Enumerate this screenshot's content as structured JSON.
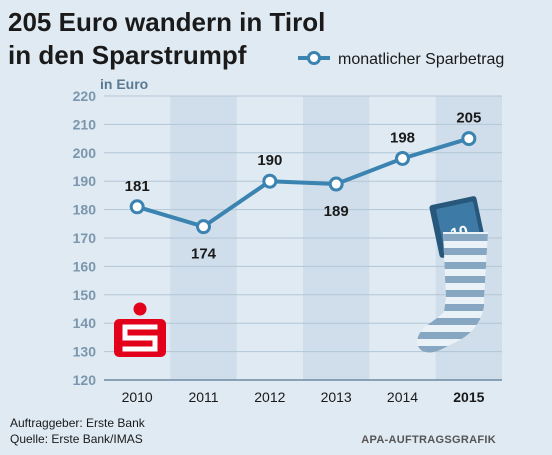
{
  "title_lines": [
    "205 Euro wandern in Tirol",
    "in den Sparstrumpf"
  ],
  "footer": {
    "auftraggeber": "Auftraggeber: Erste Bank",
    "quelle": "Quelle: Erste Bank/IMAS",
    "credit": "APA-AUFTRAGSGRAFIK"
  },
  "icons": [
    "sparkasse-logo-icon",
    "sock-icon",
    "banknote-icon"
  ],
  "colors": {
    "line": "#3b83b0",
    "background": "#dfeaf3",
    "band": "#cfdeea",
    "logo": "#e3001b"
  },
  "chart_data": {
    "type": "line",
    "unit_label": "in Euro",
    "categories": [
      "2010",
      "2011",
      "2012",
      "2013",
      "2014",
      "2015"
    ],
    "highlight_category": "2015",
    "series": [
      {
        "name": "monatlicher Sparbetrag",
        "values": [
          181,
          174,
          190,
          189,
          198,
          205
        ]
      }
    ],
    "data_labels": [
      "181",
      "174",
      "190",
      "189",
      "198",
      "205"
    ],
    "ylim": [
      120,
      220
    ],
    "yticks": [
      120,
      130,
      140,
      150,
      160,
      170,
      180,
      190,
      200,
      210,
      220
    ],
    "grid": true,
    "legend": "top-right"
  }
}
